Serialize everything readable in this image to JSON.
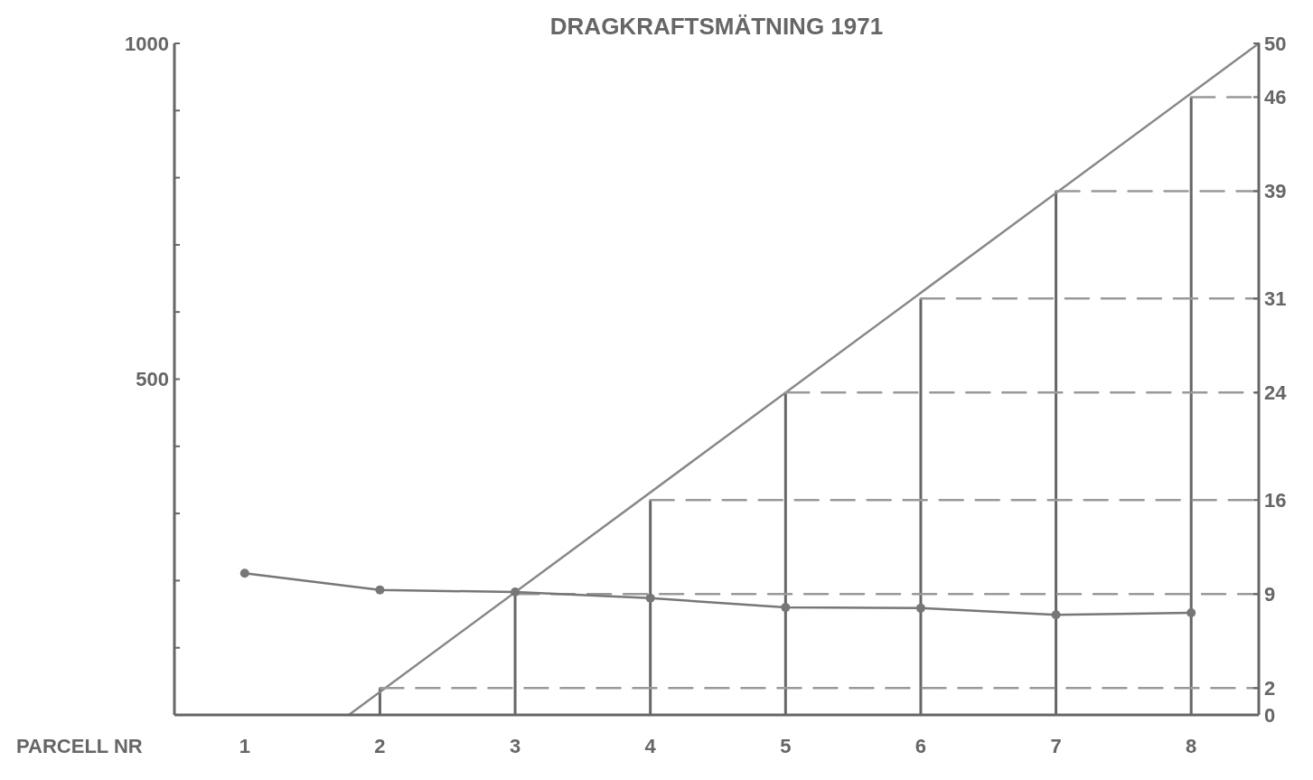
{
  "chart_data": {
    "type": "line",
    "title": "DRAGKRAFTSMÄTNING 1971",
    "xlabel": "PARCELL NR",
    "x": [
      1,
      2,
      3,
      4,
      5,
      6,
      7,
      8
    ],
    "xlim": [
      0.48,
      8.5
    ],
    "xticks": [
      1,
      2,
      3,
      4,
      5,
      6,
      7,
      8
    ],
    "ylim": [
      0,
      1000
    ],
    "yticks": [
      {
        "value": 0,
        "label": null
      },
      {
        "value": 100,
        "label": null
      },
      {
        "value": 200,
        "label": null
      },
      {
        "value": 300,
        "label": null
      },
      {
        "value": 400,
        "label": null
      },
      500,
      {
        "value": 600,
        "label": null
      },
      {
        "value": 700,
        "label": null
      },
      {
        "value": 800,
        "label": null
      },
      {
        "value": 900,
        "label": null
      },
      1000
    ],
    "y2lim": [
      0,
      50
    ],
    "y2ticks": [
      0,
      2,
      9,
      16,
      24,
      31,
      39,
      46,
      50
    ],
    "grid": false,
    "marker": "circle",
    "line_style": "solid",
    "series": [
      {
        "color": "#777777",
        "values": [
          211,
          186,
          183,
          174,
          160,
          159,
          149,
          152
        ]
      },
      {
        "type": "bar",
        "axis": "y2",
        "color": "#666666",
        "values": [
          null,
          2,
          9,
          16,
          24,
          31,
          39,
          46
        ]
      },
      {
        "type": "line",
        "axis": "y2",
        "marker": "none",
        "color": "#888888",
        "x": [
          1.77,
          8.5
        ],
        "values": [
          0,
          50
        ]
      },
      {
        "type": "line",
        "axis": "y2",
        "marker": "none",
        "line_style": "dashed",
        "color": "#999999",
        "x": [
          2,
          8.5
        ],
        "values": [
          2,
          2
        ]
      },
      {
        "type": "line",
        "axis": "y2",
        "marker": "none",
        "line_style": "dashed",
        "color": "#999999",
        "x": [
          3,
          8.5
        ],
        "values": [
          9,
          9
        ]
      },
      {
        "type": "line",
        "axis": "y2",
        "marker": "none",
        "line_style": "dashed",
        "color": "#999999",
        "x": [
          4,
          8.5
        ],
        "values": [
          16,
          16
        ]
      },
      {
        "type": "line",
        "axis": "y2",
        "marker": "none",
        "line_style": "dashed",
        "color": "#999999",
        "x": [
          5,
          8.5
        ],
        "values": [
          24,
          24
        ]
      },
      {
        "type": "line",
        "axis": "y2",
        "marker": "none",
        "line_style": "dashed",
        "color": "#999999",
        "x": [
          6,
          8.5
        ],
        "values": [
          31,
          31
        ]
      },
      {
        "type": "line",
        "axis": "y2",
        "marker": "none",
        "line_style": "dashed",
        "color": "#999999",
        "x": [
          7,
          8.5
        ],
        "values": [
          39,
          39
        ]
      },
      {
        "type": "line",
        "axis": "y2",
        "marker": "none",
        "line_style": "dashed",
        "color": "#999999",
        "x": [
          8,
          8.5
        ],
        "values": [
          46,
          46
        ]
      }
    ]
  }
}
